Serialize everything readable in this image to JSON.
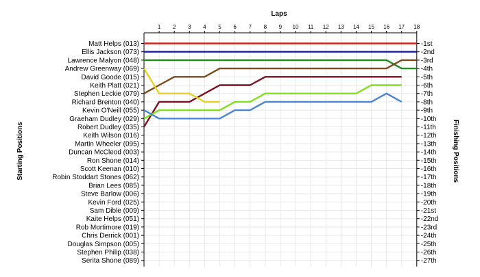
{
  "chart_data": {
    "type": "line",
    "title": "Laps",
    "ylabel_left": "Starting Positions",
    "ylabel_right": "Finishing Positions",
    "laps": [
      1,
      2,
      3,
      4,
      5,
      6,
      7,
      8,
      9,
      10,
      11,
      12,
      13,
      14,
      15,
      16,
      17,
      18
    ],
    "grid": true,
    "drivers": [
      "Matt Helps (013)",
      "Ellis Jackson (073)",
      "Lawrence Malyon (048)",
      "Andrew Greenway (069)",
      "David Goode (015)",
      "Keith Platt (021)",
      "Stephen Leckie (079)",
      "Richard Brenton (040)",
      "Kevin O'Neill (055)",
      "Graeham Dudley (029)",
      "Robert Dudley (035)",
      "Keith Wilson (016)",
      "Martin Wheeler (095)",
      "Duncan McCleod (003)",
      "Ron Shone (014)",
      "Scott Keenan (010)",
      "Robin Stoddart Stones (062)",
      "Brian Lees (085)",
      "Steve Barlow (006)",
      "Kevin Ford (025)",
      "Sam Dible (009)",
      "Kaite Helps (051)",
      "Rob Mortimore (019)",
      "Chris Derrick (001)",
      "Douglas Simpson (005)",
      "Stephen Philip (038)",
      "Serita Shone (089)"
    ],
    "finishing_positions": [
      "1st",
      "2nd",
      "3rd",
      "4th",
      "5th",
      "6th",
      "7th",
      "8th",
      "9th",
      "10th",
      "11th",
      "12th",
      "13th",
      "14th",
      "15th",
      "16th",
      "17th",
      "18th",
      "19th",
      "20th",
      "21st",
      "22nd",
      "23rd",
      "24th",
      "25th",
      "26th",
      "27th"
    ],
    "series": [
      {
        "color": "#d42020",
        "start": 1,
        "laps": [
          1,
          1,
          1,
          1,
          1,
          1,
          1,
          1,
          1,
          1,
          1,
          1,
          1,
          1,
          1,
          1,
          1,
          1
        ]
      },
      {
        "color": "#1b1bb0",
        "start": 2,
        "laps": [
          2,
          2,
          2,
          2,
          2,
          2,
          2,
          2,
          2,
          2,
          2,
          2,
          2,
          2,
          2,
          2,
          2,
          2
        ]
      },
      {
        "color": "#1e8c1e",
        "start": 3,
        "laps": [
          3,
          3,
          3,
          3,
          3,
          3,
          3,
          3,
          3,
          3,
          3,
          3,
          3,
          3,
          3,
          3,
          4,
          4
        ]
      },
      {
        "color": "#7a4a1e",
        "start": 7,
        "laps": [
          6,
          5,
          5,
          5,
          4,
          4,
          4,
          4,
          4,
          4,
          4,
          4,
          4,
          4,
          4,
          4,
          3,
          3
        ]
      },
      {
        "color": "#7a1020",
        "start": 11,
        "laps": [
          8,
          8,
          8,
          7,
          6,
          6,
          6,
          5,
          5,
          5,
          5,
          5,
          5,
          5,
          5,
          5,
          5
        ]
      },
      {
        "color": "#e6d21e",
        "start": 4,
        "laps": [
          7,
          7,
          7,
          8,
          8
        ]
      },
      {
        "color": "#80e01e",
        "start": 10,
        "laps": [
          9,
          9,
          9,
          9,
          9,
          8,
          8,
          7,
          7,
          7,
          7,
          7,
          7,
          7,
          6,
          6,
          6
        ]
      },
      {
        "color": "#4a86d0",
        "start": 9,
        "laps": [
          10,
          10,
          10,
          10,
          10,
          9,
          9,
          8,
          8,
          8,
          8,
          8,
          8,
          8,
          8,
          7,
          8
        ]
      }
    ]
  }
}
